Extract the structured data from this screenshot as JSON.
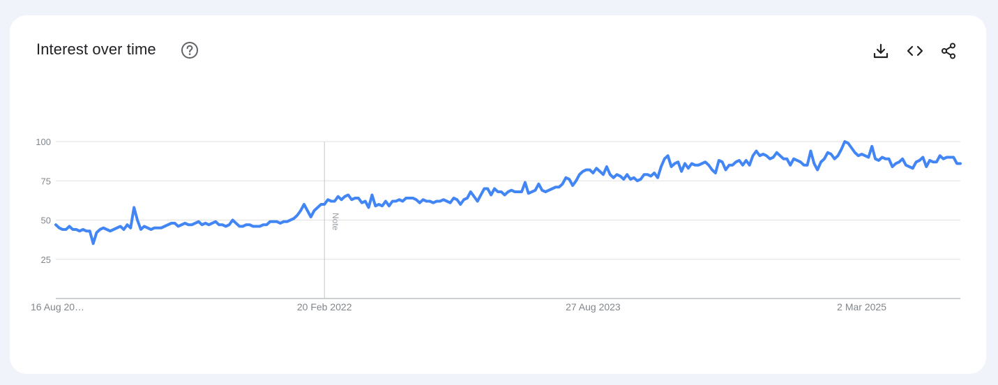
{
  "header": {
    "title": "Interest over time",
    "help_icon": "help-circle-icon"
  },
  "toolbar": {
    "download_icon": "download-icon",
    "embed_icon": "code-embed-icon",
    "share_icon": "share-icon"
  },
  "colors": {
    "line": "#4285f4",
    "grid": "#e0e0e0",
    "axis": "#9aa0a6",
    "text": "#80868b"
  },
  "chart_data": {
    "type": "line",
    "title": "Interest over time",
    "xlabel": "",
    "ylabel": "",
    "ylim": [
      0,
      100
    ],
    "y_ticks": [
      25,
      50,
      75,
      100
    ],
    "x_tick_labels": [
      "16 Aug 20…",
      "20 Feb 2022",
      "27 Aug 2023",
      "2 Mar 2025"
    ],
    "x_tick_indices": [
      0,
      79,
      158,
      237
    ],
    "annotations": [
      {
        "label": "Note",
        "index": 79
      }
    ],
    "grid": true,
    "legend": "none",
    "series": [
      {
        "values": [
          47,
          45,
          44,
          44,
          46,
          44,
          44,
          43,
          44,
          43,
          43,
          35,
          42,
          44,
          45,
          44,
          43,
          44,
          45,
          46,
          44,
          47,
          45,
          58,
          50,
          44,
          46,
          45,
          44,
          45,
          45,
          45,
          46,
          47,
          48,
          48,
          46,
          47,
          48,
          47,
          47,
          48,
          49,
          47,
          48,
          47,
          48,
          49,
          47,
          47,
          46,
          47,
          50,
          48,
          46,
          46,
          47,
          47,
          46,
          46,
          46,
          47,
          47,
          49,
          49,
          49,
          48,
          49,
          49,
          50,
          51,
          53,
          56,
          60,
          56,
          52,
          56,
          58,
          60,
          60,
          63,
          62,
          62,
          65,
          63,
          65,
          66,
          63,
          64,
          64,
          61,
          62,
          58,
          66,
          59,
          60,
          59,
          62,
          59,
          62,
          62,
          63,
          62,
          64,
          64,
          64,
          63,
          61,
          63,
          62,
          62,
          61,
          62,
          62,
          63,
          62,
          61,
          64,
          63,
          60,
          63,
          64,
          68,
          65,
          62,
          66,
          70,
          70,
          66,
          70,
          68,
          68,
          66,
          68,
          69,
          68,
          68,
          68,
          74,
          67,
          68,
          69,
          73,
          69,
          68,
          69,
          70,
          71,
          71,
          73,
          77,
          76,
          72,
          75,
          79,
          81,
          82,
          82,
          80,
          83,
          81,
          79,
          84,
          79,
          77,
          79,
          78,
          76,
          79,
          76,
          77,
          75,
          76,
          79,
          79,
          78,
          80,
          77,
          84,
          89,
          91,
          84,
          86,
          87,
          81,
          86,
          83,
          86,
          85,
          85,
          86,
          87,
          85,
          82,
          80,
          88,
          87,
          82,
          85,
          85,
          87,
          88,
          85,
          88,
          85,
          91,
          94,
          91,
          92,
          91,
          89,
          90,
          93,
          91,
          89,
          89,
          85,
          89,
          88,
          87,
          85,
          85,
          94,
          86,
          82,
          87,
          89,
          93,
          92,
          89,
          91,
          95,
          100,
          99,
          96,
          93,
          91,
          92,
          91,
          90,
          97,
          89,
          88,
          90,
          89,
          89,
          84,
          86,
          87,
          89,
          85,
          84,
          83,
          87,
          88,
          90,
          84,
          88,
          87,
          87,
          91,
          89,
          90,
          90,
          90,
          86,
          86
        ]
      }
    ]
  }
}
